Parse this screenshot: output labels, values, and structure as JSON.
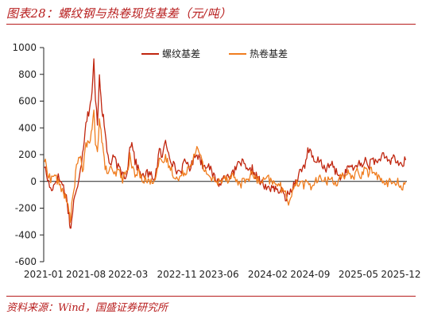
{
  "header": {
    "title": "图表28：螺纹钢与热卷现货基差（元/吨）"
  },
  "footer": {
    "source": "资料来源：Wind，国盛证券研究所"
  },
  "colors": {
    "accent": "#b71c1c",
    "series1": "#c0250e",
    "series2": "#f07d1f"
  },
  "chart_data": {
    "type": "line",
    "title": "螺纹钢与热卷现货基差（元/吨）",
    "xlabel": "",
    "ylabel": "",
    "ylim": [
      -600,
      1000
    ],
    "yticks": [
      -600,
      -400,
      -200,
      0,
      200,
      400,
      600,
      800,
      1000
    ],
    "xticks": [
      "2021-01",
      "2021-08",
      "2022-03",
      "2022-11",
      "2023-06",
      "2024-02",
      "2024-09",
      "2025-05",
      "2025-12"
    ],
    "legend_position": "top-center",
    "grid": false,
    "series": [
      {
        "name": "螺纹基差",
        "color": "#c0250e",
        "points": [
          [
            "2021-01-04",
            120
          ],
          [
            "2021-01-20",
            20
          ],
          [
            "2021-02-05",
            -60
          ],
          [
            "2021-02-25",
            -20
          ],
          [
            "2021-03-10",
            40
          ],
          [
            "2021-03-25",
            10
          ],
          [
            "2021-04-10",
            -40
          ],
          [
            "2021-04-25",
            -120
          ],
          [
            "2021-05-08",
            -250
          ],
          [
            "2021-05-14",
            -360
          ],
          [
            "2021-05-21",
            -300
          ],
          [
            "2021-06-01",
            -150
          ],
          [
            "2021-06-15",
            -80
          ],
          [
            "2021-07-01",
            80
          ],
          [
            "2021-07-15",
            200
          ],
          [
            "2021-08-01",
            450
          ],
          [
            "2021-08-15",
            520
          ],
          [
            "2021-09-01",
            650
          ],
          [
            "2021-09-10",
            900
          ],
          [
            "2021-09-18",
            600
          ],
          [
            "2021-09-28",
            450
          ],
          [
            "2021-10-08",
            800
          ],
          [
            "2021-10-20",
            560
          ],
          [
            "2021-11-01",
            420
          ],
          [
            "2021-11-15",
            230
          ],
          [
            "2021-12-01",
            120
          ],
          [
            "2021-12-20",
            180
          ],
          [
            "2022-01-10",
            100
          ],
          [
            "2022-02-01",
            60
          ],
          [
            "2022-02-20",
            40
          ],
          [
            "2022-03-10",
            250
          ],
          [
            "2022-03-20",
            310
          ],
          [
            "2022-04-05",
            150
          ],
          [
            "2022-04-25",
            80
          ],
          [
            "2022-05-15",
            30
          ],
          [
            "2022-06-05",
            60
          ],
          [
            "2022-06-25",
            40
          ],
          [
            "2022-07-15",
            30
          ],
          [
            "2022-08-05",
            230
          ],
          [
            "2022-08-20",
            180
          ],
          [
            "2022-09-05",
            300
          ],
          [
            "2022-09-25",
            200
          ],
          [
            "2022-10-15",
            120
          ],
          [
            "2022-11-05",
            70
          ],
          [
            "2022-11-25",
            90
          ],
          [
            "2022-12-15",
            150
          ],
          [
            "2023-01-10",
            100
          ],
          [
            "2023-02-05",
            220
          ],
          [
            "2023-02-25",
            170
          ],
          [
            "2023-03-15",
            110
          ],
          [
            "2023-04-05",
            140
          ],
          [
            "2023-04-25",
            60
          ],
          [
            "2023-05-15",
            20
          ],
          [
            "2023-06-05",
            -20
          ],
          [
            "2023-06-25",
            30
          ],
          [
            "2023-07-15",
            60
          ],
          [
            "2023-08-05",
            40
          ],
          [
            "2023-08-25",
            90
          ],
          [
            "2023-09-15",
            150
          ],
          [
            "2023-10-05",
            120
          ],
          [
            "2023-10-25",
            60
          ],
          [
            "2023-11-15",
            90
          ],
          [
            "2023-12-05",
            40
          ],
          [
            "2023-12-25",
            0
          ],
          [
            "2024-01-15",
            -40
          ],
          [
            "2024-02-05",
            -60
          ],
          [
            "2024-02-25",
            -30
          ],
          [
            "2024-03-15",
            -80
          ],
          [
            "2024-04-05",
            -60
          ],
          [
            "2024-04-25",
            -120
          ],
          [
            "2024-05-15",
            -100
          ],
          [
            "2024-06-05",
            -40
          ],
          [
            "2024-06-25",
            20
          ],
          [
            "2024-07-15",
            80
          ],
          [
            "2024-08-05",
            120
          ],
          [
            "2024-08-20",
            240
          ],
          [
            "2024-09-05",
            200
          ],
          [
            "2024-09-25",
            130
          ],
          [
            "2024-10-15",
            160
          ],
          [
            "2024-11-05",
            120
          ],
          [
            "2024-11-25",
            90
          ],
          [
            "2024-12-15",
            130
          ],
          [
            "2025-01-10",
            70
          ],
          [
            "2025-02-05",
            30
          ],
          [
            "2025-02-25",
            60
          ],
          [
            "2025-03-15",
            120
          ],
          [
            "2025-04-05",
            80
          ],
          [
            "2025-04-25",
            140
          ],
          [
            "2025-05-15",
            110
          ],
          [
            "2025-06-05",
            160
          ],
          [
            "2025-06-25",
            120
          ],
          [
            "2025-07-15",
            170
          ],
          [
            "2025-08-05",
            130
          ],
          [
            "2025-08-25",
            200
          ],
          [
            "2025-09-15",
            160
          ],
          [
            "2025-10-05",
            140
          ],
          [
            "2025-10-25",
            190
          ],
          [
            "2025-11-15",
            140
          ],
          [
            "2025-12-05",
            120
          ],
          [
            "2025-12-25",
            160
          ]
        ]
      },
      {
        "name": "热卷基差",
        "color": "#f07d1f",
        "points": [
          [
            "2021-01-04",
            160
          ],
          [
            "2021-01-20",
            80
          ],
          [
            "2021-02-05",
            10
          ],
          [
            "2021-02-25",
            60
          ],
          [
            "2021-03-10",
            0
          ],
          [
            "2021-03-25",
            -40
          ],
          [
            "2021-04-10",
            -70
          ],
          [
            "2021-04-25",
            -150
          ],
          [
            "2021-05-08",
            -220
          ],
          [
            "2021-05-14",
            -280
          ],
          [
            "2021-05-21",
            -200
          ],
          [
            "2021-06-01",
            -60
          ],
          [
            "2021-06-15",
            100
          ],
          [
            "2021-07-01",
            200
          ],
          [
            "2021-07-15",
            60
          ],
          [
            "2021-08-01",
            300
          ],
          [
            "2021-08-15",
            260
          ],
          [
            "2021-09-01",
            380
          ],
          [
            "2021-09-10",
            520
          ],
          [
            "2021-09-18",
            300
          ],
          [
            "2021-09-28",
            250
          ],
          [
            "2021-10-08",
            460
          ],
          [
            "2021-10-20",
            320
          ],
          [
            "2021-11-01",
            150
          ],
          [
            "2021-11-15",
            60
          ],
          [
            "2021-12-01",
            100
          ],
          [
            "2021-12-20",
            40
          ],
          [
            "2022-01-10",
            80
          ],
          [
            "2022-02-01",
            20
          ],
          [
            "2022-02-20",
            60
          ],
          [
            "2022-03-10",
            180
          ],
          [
            "2022-03-20",
            120
          ],
          [
            "2022-04-05",
            40
          ],
          [
            "2022-04-25",
            70
          ],
          [
            "2022-05-15",
            20
          ],
          [
            "2022-06-05",
            10
          ],
          [
            "2022-06-25",
            -10
          ],
          [
            "2022-07-15",
            40
          ],
          [
            "2022-08-05",
            150
          ],
          [
            "2022-08-20",
            120
          ],
          [
            "2022-09-05",
            180
          ],
          [
            "2022-09-25",
            110
          ],
          [
            "2022-10-15",
            60
          ],
          [
            "2022-11-05",
            10
          ],
          [
            "2022-11-25",
            40
          ],
          [
            "2022-12-15",
            80
          ],
          [
            "2023-01-10",
            130
          ],
          [
            "2023-02-05",
            250
          ],
          [
            "2023-02-25",
            200
          ],
          [
            "2023-03-15",
            100
          ],
          [
            "2023-04-05",
            60
          ],
          [
            "2023-04-25",
            20
          ],
          [
            "2023-05-15",
            -10
          ],
          [
            "2023-06-05",
            0
          ],
          [
            "2023-06-25",
            40
          ],
          [
            "2023-07-15",
            20
          ],
          [
            "2023-08-05",
            50
          ],
          [
            "2023-08-25",
            10
          ],
          [
            "2023-09-15",
            -20
          ],
          [
            "2023-10-05",
            0
          ],
          [
            "2023-10-25",
            30
          ],
          [
            "2023-11-15",
            50
          ],
          [
            "2023-12-05",
            20
          ],
          [
            "2023-12-25",
            -10
          ],
          [
            "2024-01-15",
            0
          ],
          [
            "2024-02-05",
            20
          ],
          [
            "2024-02-25",
            -20
          ],
          [
            "2024-03-15",
            0
          ],
          [
            "2024-04-05",
            -40
          ],
          [
            "2024-04-25",
            -90
          ],
          [
            "2024-05-15",
            -150
          ],
          [
            "2024-06-05",
            -60
          ],
          [
            "2024-06-25",
            -20
          ],
          [
            "2024-07-15",
            0
          ],
          [
            "2024-08-05",
            -30
          ],
          [
            "2024-08-20",
            0
          ],
          [
            "2024-09-05",
            -40
          ],
          [
            "2024-09-25",
            -10
          ],
          [
            "2024-10-15",
            10
          ],
          [
            "2024-11-05",
            30
          ],
          [
            "2024-11-25",
            0
          ],
          [
            "2024-12-15",
            20
          ],
          [
            "2025-01-10",
            -10
          ],
          [
            "2025-02-05",
            40
          ],
          [
            "2025-02-25",
            10
          ],
          [
            "2025-03-15",
            70
          ],
          [
            "2025-04-05",
            30
          ],
          [
            "2025-04-25",
            80
          ],
          [
            "2025-05-15",
            40
          ],
          [
            "2025-06-05",
            90
          ],
          [
            "2025-06-25",
            60
          ],
          [
            "2025-07-15",
            100
          ],
          [
            "2025-08-05",
            40
          ],
          [
            "2025-08-25",
            0
          ],
          [
            "2025-09-15",
            -20
          ],
          [
            "2025-10-05",
            10
          ],
          [
            "2025-10-25",
            -30
          ],
          [
            "2025-11-15",
            -10
          ],
          [
            "2025-12-05",
            -40
          ],
          [
            "2025-12-25",
            0
          ]
        ]
      }
    ]
  }
}
